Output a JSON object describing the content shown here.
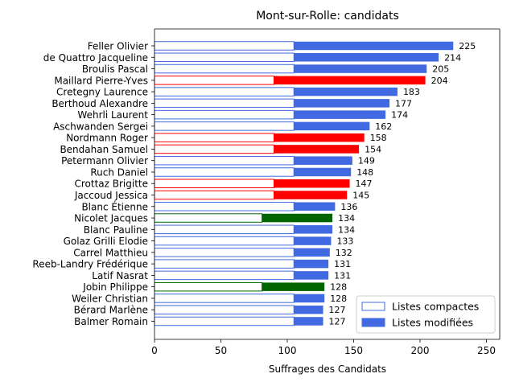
{
  "chart_data": {
    "type": "bar",
    "orientation": "horizontal",
    "stacked": true,
    "title": "Mont-sur-Rolle: candidats",
    "xlabel": "Suffrages des Candidats",
    "ylabel": "",
    "xlim": [
      0,
      260
    ],
    "xticks": [
      0,
      50,
      100,
      150,
      200,
      250
    ],
    "grid": false,
    "legend_position": "lower-right",
    "legend": [
      {
        "label": "Listes compactes",
        "style": "outline",
        "color": "#4169e1"
      },
      {
        "label": "Listes modifiées",
        "style": "filled",
        "color": "#4169e1"
      }
    ],
    "party_colors": {
      "blue": "#4169e1",
      "red": "#ff0000",
      "green": "#006400"
    },
    "candidates": [
      {
        "name": "Feller Olivier",
        "compact": 105,
        "total": 225,
        "color": "blue"
      },
      {
        "name": "de Quattro Jacqueline",
        "compact": 105,
        "total": 214,
        "color": "blue"
      },
      {
        "name": "Broulis Pascal",
        "compact": 105,
        "total": 205,
        "color": "blue"
      },
      {
        "name": "Maillard Pierre-Yves",
        "compact": 90,
        "total": 204,
        "color": "red"
      },
      {
        "name": "Cretegny Laurence",
        "compact": 105,
        "total": 183,
        "color": "blue"
      },
      {
        "name": "Berthoud Alexandre",
        "compact": 105,
        "total": 177,
        "color": "blue"
      },
      {
        "name": "Wehrli Laurent",
        "compact": 105,
        "total": 174,
        "color": "blue"
      },
      {
        "name": "Aschwanden Sergei",
        "compact": 105,
        "total": 162,
        "color": "blue"
      },
      {
        "name": "Nordmann Roger",
        "compact": 90,
        "total": 158,
        "color": "red"
      },
      {
        "name": "Bendahan Samuel",
        "compact": 90,
        "total": 154,
        "color": "red"
      },
      {
        "name": "Petermann Olivier",
        "compact": 105,
        "total": 149,
        "color": "blue"
      },
      {
        "name": "Ruch Daniel",
        "compact": 105,
        "total": 148,
        "color": "blue"
      },
      {
        "name": "Crottaz Brigitte",
        "compact": 90,
        "total": 147,
        "color": "red"
      },
      {
        "name": "Jaccoud Jessica",
        "compact": 90,
        "total": 145,
        "color": "red"
      },
      {
        "name": "Blanc Étienne",
        "compact": 105,
        "total": 136,
        "color": "blue"
      },
      {
        "name": "Nicolet Jacques",
        "compact": 81,
        "total": 134,
        "color": "green"
      },
      {
        "name": "Blanc Pauline",
        "compact": 105,
        "total": 134,
        "color": "blue"
      },
      {
        "name": "Golaz Grilli Elodie",
        "compact": 105,
        "total": 133,
        "color": "blue"
      },
      {
        "name": "Carrel Matthieu",
        "compact": 105,
        "total": 132,
        "color": "blue"
      },
      {
        "name": "Reeb-Landry Frédérique",
        "compact": 105,
        "total": 131,
        "color": "blue"
      },
      {
        "name": "Latif Nasrat",
        "compact": 105,
        "total": 131,
        "color": "blue"
      },
      {
        "name": "Jobin Philippe",
        "compact": 81,
        "total": 128,
        "color": "green"
      },
      {
        "name": "Weiler Christian",
        "compact": 105,
        "total": 128,
        "color": "blue"
      },
      {
        "name": "Bérard Marlène",
        "compact": 105,
        "total": 127,
        "color": "blue"
      },
      {
        "name": "Balmer Romain",
        "compact": 105,
        "total": 127,
        "color": "blue"
      }
    ]
  }
}
